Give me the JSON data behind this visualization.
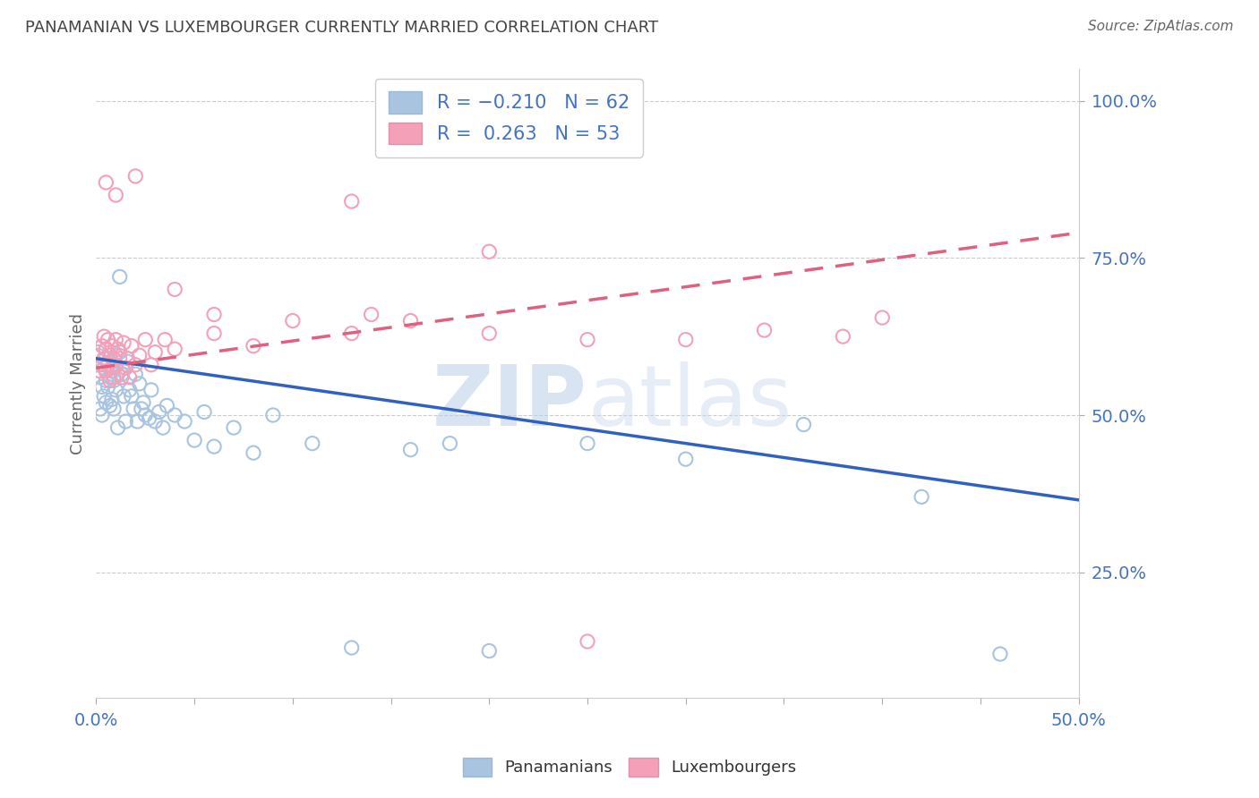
{
  "title": "PANAMANIAN VS LUXEMBOURGER CURRENTLY MARRIED CORRELATION CHART",
  "source": "Source: ZipAtlas.com",
  "ylabel": "Currently Married",
  "xlim": [
    0.0,
    0.5
  ],
  "ylim": [
    0.05,
    1.05
  ],
  "yticks": [
    0.25,
    0.5,
    0.75,
    1.0
  ],
  "ytick_labels": [
    "25.0%",
    "50.0%",
    "75.0%",
    "100.0%"
  ],
  "blue_color": "#a8c4e0",
  "pink_color": "#f4a0b8",
  "blue_line_color": "#3060c0",
  "pink_line_color": "#e06080",
  "background_color": "#ffffff",
  "watermark_zip": "ZIP",
  "watermark_atlas": "atlas",
  "pan_x": [
    0.001,
    0.002,
    0.002,
    0.003,
    0.003,
    0.004,
    0.004,
    0.005,
    0.005,
    0.005,
    0.006,
    0.006,
    0.007,
    0.007,
    0.008,
    0.008,
    0.009,
    0.009,
    0.01,
    0.01,
    0.011,
    0.011,
    0.012,
    0.012,
    0.013,
    0.014,
    0.015,
    0.015,
    0.016,
    0.017,
    0.018,
    0.019,
    0.02,
    0.021,
    0.022,
    0.023,
    0.024,
    0.025,
    0.027,
    0.028,
    0.03,
    0.032,
    0.034,
    0.036,
    0.04,
    0.045,
    0.05,
    0.055,
    0.06,
    0.07,
    0.08,
    0.09,
    0.11,
    0.13,
    0.16,
    0.18,
    0.2,
    0.25,
    0.3,
    0.36,
    0.42,
    0.46
  ],
  "pan_y": [
    0.595,
    0.56,
    0.51,
    0.545,
    0.5,
    0.575,
    0.53,
    0.59,
    0.555,
    0.52,
    0.58,
    0.545,
    0.56,
    0.515,
    0.57,
    0.525,
    0.555,
    0.51,
    0.595,
    0.54,
    0.565,
    0.48,
    0.6,
    0.72,
    0.565,
    0.53,
    0.575,
    0.49,
    0.585,
    0.54,
    0.53,
    0.51,
    0.565,
    0.49,
    0.55,
    0.51,
    0.52,
    0.5,
    0.495,
    0.54,
    0.49,
    0.505,
    0.48,
    0.515,
    0.5,
    0.49,
    0.46,
    0.505,
    0.45,
    0.48,
    0.44,
    0.5,
    0.455,
    0.13,
    0.445,
    0.455,
    0.125,
    0.455,
    0.43,
    0.485,
    0.37,
    0.12
  ],
  "lux_x": [
    0.001,
    0.002,
    0.003,
    0.003,
    0.004,
    0.004,
    0.005,
    0.005,
    0.006,
    0.006,
    0.007,
    0.007,
    0.008,
    0.008,
    0.009,
    0.009,
    0.01,
    0.01,
    0.011,
    0.012,
    0.013,
    0.014,
    0.015,
    0.016,
    0.017,
    0.018,
    0.02,
    0.022,
    0.025,
    0.028,
    0.03,
    0.035,
    0.04,
    0.06,
    0.08,
    0.1,
    0.13,
    0.16,
    0.2,
    0.25,
    0.3,
    0.34,
    0.38,
    0.4,
    0.13,
    0.2,
    0.14,
    0.06,
    0.04,
    0.02,
    0.01,
    0.005,
    0.25
  ],
  "lux_y": [
    0.6,
    0.57,
    0.61,
    0.58,
    0.625,
    0.59,
    0.605,
    0.57,
    0.62,
    0.58,
    0.595,
    0.555,
    0.61,
    0.575,
    0.59,
    0.56,
    0.62,
    0.58,
    0.605,
    0.59,
    0.56,
    0.615,
    0.575,
    0.59,
    0.56,
    0.61,
    0.58,
    0.595,
    0.62,
    0.58,
    0.6,
    0.62,
    0.605,
    0.63,
    0.61,
    0.65,
    0.63,
    0.65,
    0.63,
    0.14,
    0.62,
    0.635,
    0.625,
    0.655,
    0.84,
    0.76,
    0.66,
    0.66,
    0.7,
    0.88,
    0.85,
    0.87,
    0.62
  ],
  "blue_line_x": [
    0.0,
    0.5
  ],
  "blue_line_y": [
    0.59,
    0.365
  ],
  "pink_line_x": [
    0.0,
    0.5
  ],
  "pink_line_y": [
    0.575,
    0.79
  ]
}
